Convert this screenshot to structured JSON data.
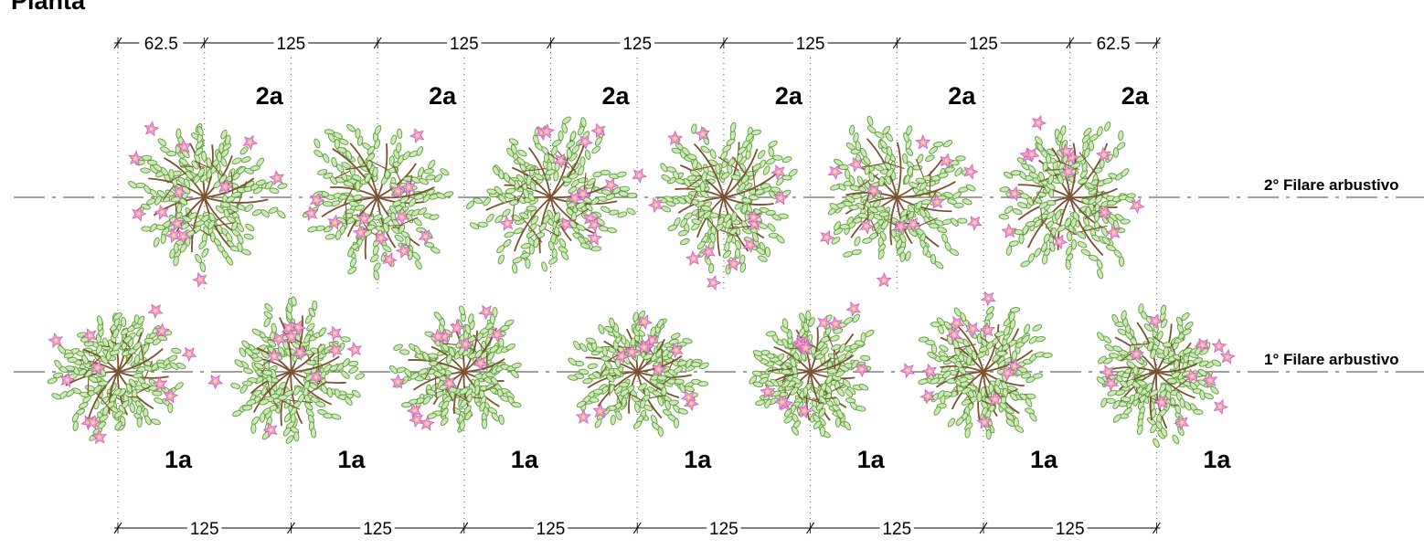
{
  "title": "Pianta",
  "rows": [
    {
      "id": "row-2",
      "label": "2° Filare arbustivo",
      "plant_tag": "2a",
      "plant_count": 6
    },
    {
      "id": "row-1",
      "label": "1° Filare arbustivo",
      "plant_tag": "1a",
      "plant_count": 7
    }
  ],
  "dimensions": {
    "top": [
      "62.5",
      "125",
      "125",
      "125",
      "125",
      "125",
      "62.5"
    ],
    "bottom": [
      "125",
      "125",
      "125",
      "125",
      "125",
      "125"
    ]
  },
  "colors": {
    "branch": "#7a5230",
    "leaf": "#5c9e3a",
    "flower": "#f29ad8",
    "flower_center": "#f7e26b",
    "line": "#666666",
    "dim_line": "#000000"
  },
  "icons": {
    "shrub": "flowering-shrub-icon"
  }
}
